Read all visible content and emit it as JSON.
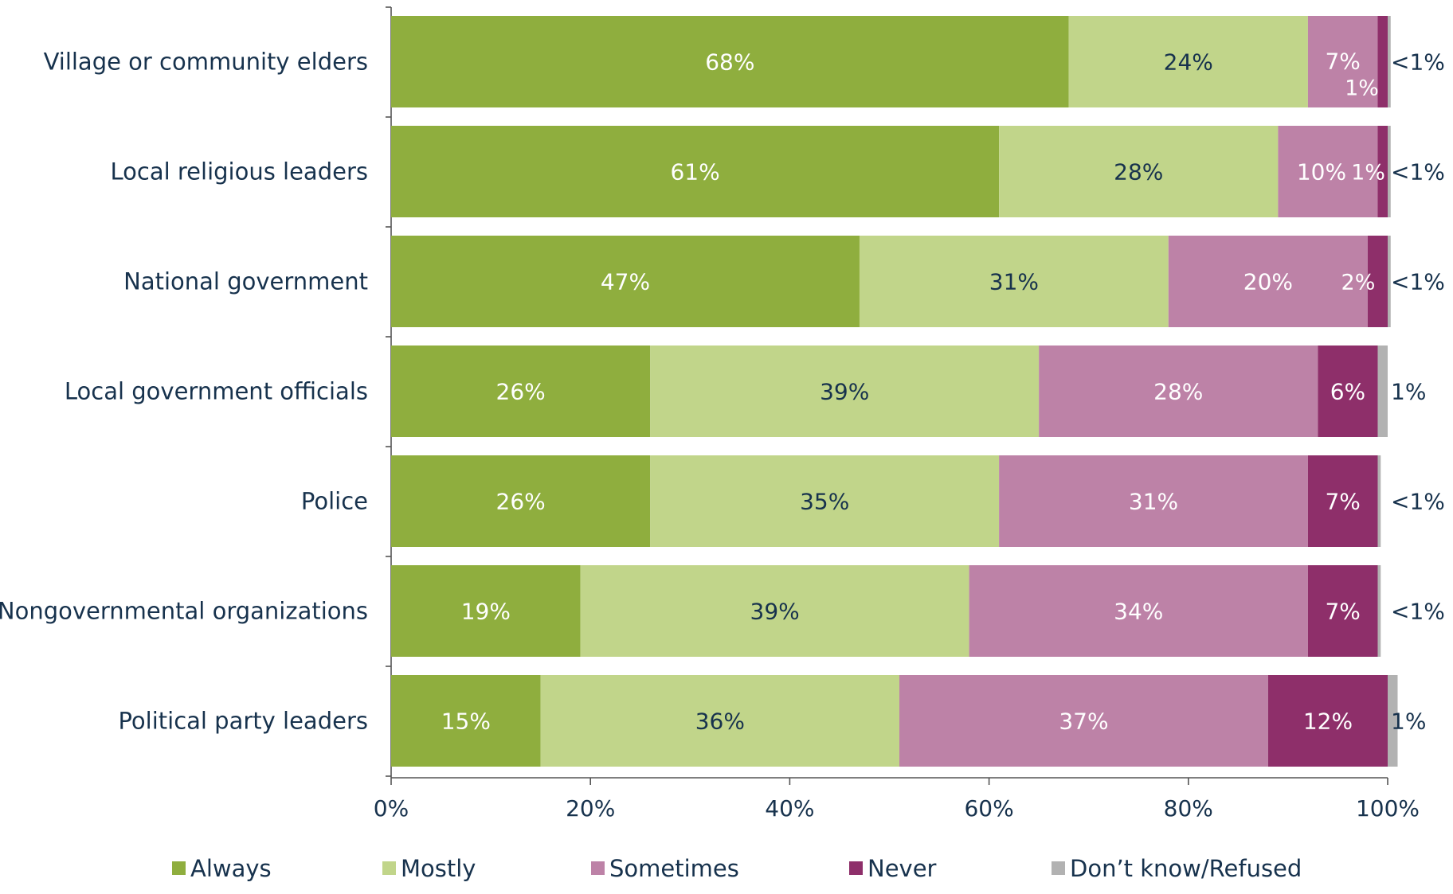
{
  "chart_data": {
    "type": "bar",
    "orientation": "horizontal",
    "stacked": true,
    "title": "",
    "xlabel": "",
    "ylabel": "",
    "xlim": [
      0,
      100
    ],
    "x_ticks": [
      0,
      20,
      40,
      60,
      80,
      100
    ],
    "x_tick_labels": [
      "0%",
      "20%",
      "40%",
      "60%",
      "80%",
      "100%"
    ],
    "categories": [
      "Village or community elders",
      "Local religious leaders",
      "National government",
      "Local government officials",
      "Police",
      "Nongovernmental organizations",
      "Political party leaders"
    ],
    "series": [
      {
        "name": "Always",
        "color": "#8fae3e",
        "values": [
          68,
          61,
          47,
          26,
          26,
          19,
          15
        ],
        "labels": [
          "68%",
          "61%",
          "47%",
          "26%",
          "26%",
          "19%",
          "15%"
        ]
      },
      {
        "name": "Mostly",
        "color": "#c1d58a",
        "values": [
          24,
          28,
          31,
          39,
          35,
          39,
          36
        ],
        "labels": [
          "24%",
          "28%",
          "31%",
          "39%",
          "35%",
          "39%",
          "36%"
        ]
      },
      {
        "name": "Sometimes",
        "color": "#bd82a7",
        "values": [
          7,
          10,
          20,
          28,
          31,
          34,
          37
        ],
        "labels": [
          "7%",
          "10%",
          "20%",
          "28%",
          "31%",
          "34%",
          "37%"
        ]
      },
      {
        "name": "Never",
        "color": "#8e2f6a",
        "values": [
          1,
          1,
          2,
          6,
          7,
          7,
          12
        ],
        "labels": [
          "1%",
          "1%",
          "2%",
          "6%",
          "7%",
          "7%",
          "12%"
        ]
      },
      {
        "name": "Don’t know/Refused",
        "color": "#b2b2b2",
        "values": [
          0.3,
          0.3,
          0.3,
          1,
          0.3,
          0.3,
          1
        ],
        "labels": [
          "<1%",
          "<1%",
          "<1%",
          "1%",
          "<1%",
          "<1%",
          "1%"
        ]
      }
    ],
    "grid": false,
    "legend_position": "bottom"
  }
}
